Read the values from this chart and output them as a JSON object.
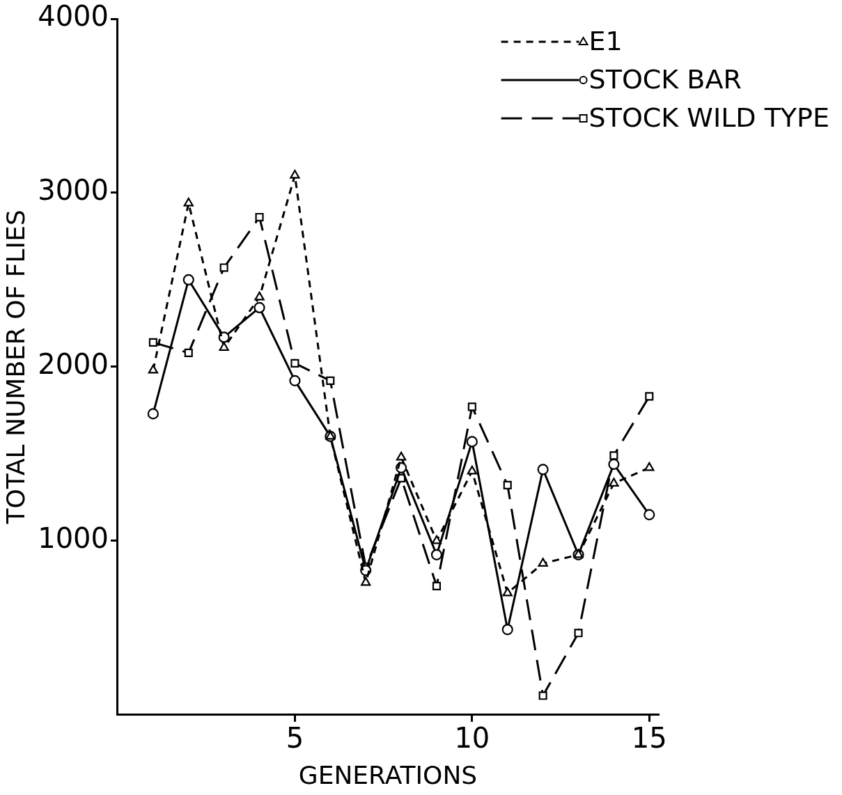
{
  "chart_data": {
    "type": "line",
    "xlabel": "GENERATIONS",
    "ylabel": "TOTAL NUMBER OF FLIES",
    "x": [
      1,
      2,
      3,
      4,
      5,
      6,
      7,
      8,
      9,
      10,
      11,
      12,
      13,
      14,
      15
    ],
    "xlim": [
      0,
      15.25
    ],
    "xticks": [
      5,
      10,
      15
    ],
    "ylim": [
      0,
      4000
    ],
    "yticks": [
      1000,
      2000,
      3000,
      4000
    ],
    "grid": false,
    "legend": "top right",
    "series": [
      {
        "name": "E1",
        "color": "#000000",
        "marker": "triangle",
        "line_style": "dotted",
        "values": [
          1980,
          2940,
          2110,
          2400,
          3100,
          1600,
          760,
          1480,
          1000,
          1400,
          700,
          870,
          920,
          1330,
          1420
        ]
      },
      {
        "name": "STOCK BAR",
        "color": "#000000",
        "marker": "circle",
        "line_style": "solid",
        "values": [
          1730,
          2500,
          2170,
          2340,
          1920,
          1600,
          830,
          1420,
          920,
          1570,
          490,
          1410,
          920,
          1440,
          1150
        ]
      },
      {
        "name": "STOCK WILD TYPE",
        "color": "#000000",
        "marker": "square",
        "line_style": "dashed",
        "values": [
          2140,
          2080,
          2570,
          2860,
          2020,
          1920,
          850,
          1360,
          740,
          1770,
          1320,
          110,
          470,
          1490,
          1830
        ]
      }
    ]
  }
}
